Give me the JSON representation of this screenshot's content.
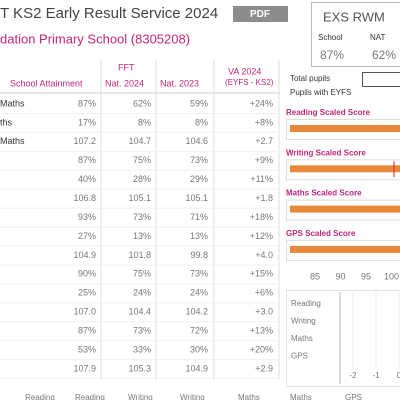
{
  "header": {
    "title": "T KS2 Early Result Service 2024",
    "pdf_button": "PDF",
    "school": "dation Primary School (8305208)"
  },
  "exs_rwm": {
    "title": "EXS RWM",
    "labels": [
      "School",
      "NAT"
    ],
    "values": [
      "87%",
      "62%"
    ]
  },
  "table": {
    "fft_label": "FFT",
    "columns": [
      "School Attainment",
      "Nat. 2024",
      "Nat. 2023"
    ],
    "va_header": [
      "VA 2024",
      "(EYFS - KS2)"
    ],
    "rows": [
      [
        "Maths",
        "87%",
        "62%",
        "59%",
        "+24%"
      ],
      [
        "ths",
        "17%",
        "8%",
        "8%",
        "+8%"
      ],
      [
        "Maths",
        "107.2",
        "104.7",
        "104.6",
        "+2.7"
      ],
      [
        null,
        "87%",
        "75%",
        "73%",
        "+9%"
      ],
      [
        null,
        "40%",
        "28%",
        "29%",
        "+11%"
      ],
      [
        null,
        "106.8",
        "105.1",
        "105.1",
        "+1.8"
      ],
      [
        null,
        "93%",
        "73%",
        "71%",
        "+18%"
      ],
      [
        null,
        "27%",
        "13%",
        "13%",
        "+12%"
      ],
      [
        null,
        "104.9",
        "101.8",
        "99.8",
        "+4.0"
      ],
      [
        null,
        "90%",
        "75%",
        "73%",
        "+15%"
      ],
      [
        null,
        "25%",
        "24%",
        "24%",
        "+6%"
      ],
      [
        null,
        "107.0",
        "104.4",
        "104.2",
        "+3.0"
      ],
      [
        null,
        "87%",
        "73%",
        "72%",
        "+13%"
      ],
      [
        null,
        "53%",
        "33%",
        "30%",
        "+20%"
      ],
      [
        null,
        "107.9",
        "105.3",
        "104.9",
        "+2.9"
      ]
    ],
    "footer_headers": [
      "Reading",
      "Reading",
      "Writing",
      "Writing",
      "Maths",
      "Maths",
      "GPS"
    ]
  },
  "pupils": {
    "labels": [
      "Total pupils",
      "Pupils with EYFS"
    ]
  },
  "scaled_scores": {
    "titles": [
      "Reading Scaled Score",
      "Writing Scaled Score",
      "Maths Scaled Score",
      "GPS Scaled Score"
    ],
    "axis_ticks": [
      "85",
      "90",
      "95",
      "100"
    ]
  },
  "va_chart": {
    "labels": [
      "Reading",
      "Writing",
      "Maths",
      "GPS"
    ],
    "ticks": [
      "-2",
      "-1",
      "0"
    ]
  }
}
